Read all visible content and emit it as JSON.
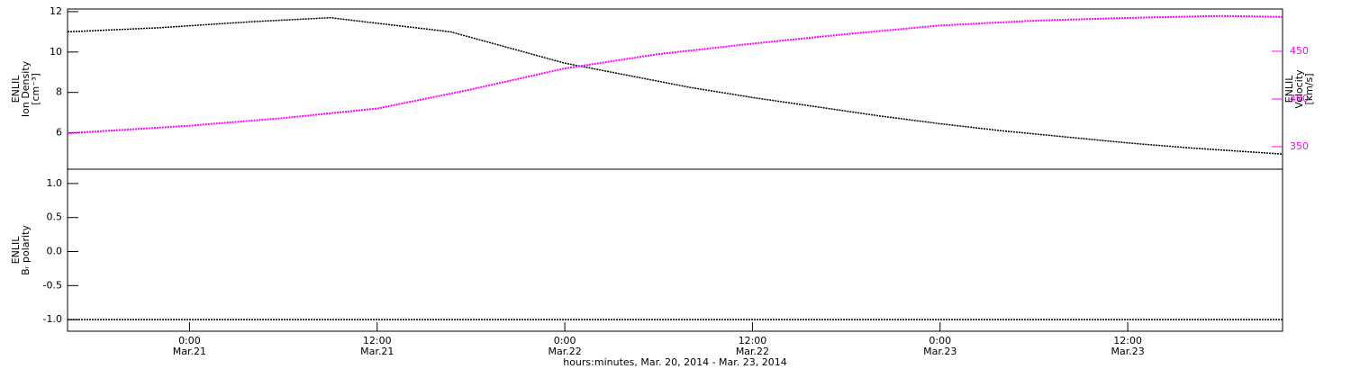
{
  "chart_data": [
    {
      "type": "line",
      "xlim": [
        16.2,
        93.9
      ],
      "ylim": [
        4.2,
        12.13
      ],
      "yticks": [
        6,
        8,
        10,
        12
      ],
      "y2lim": [
        326.4,
        494.3
      ],
      "y2ticks": [
        350,
        400,
        450
      ],
      "ylabel": [
        "ENLIL",
        "Ion Density",
        "[cm⁻³]"
      ],
      "y2label": [
        "ENLIL",
        "Velocity",
        "[km/s]"
      ],
      "series": [
        {
          "name": "Ion Density",
          "color": "#000000",
          "x": [
            16.2,
            22,
            28,
            33,
            40.7,
            44,
            48,
            52,
            56,
            60,
            64,
            68,
            72,
            76,
            80,
            84,
            88,
            93.9
          ],
          "values": [
            11.0,
            11.2,
            11.5,
            11.7,
            11.0,
            10.3,
            9.45,
            8.85,
            8.25,
            7.75,
            7.3,
            6.85,
            6.45,
            6.1,
            5.8,
            5.5,
            5.25,
            4.95
          ]
        },
        {
          "name": "Velocity",
          "color": "#ff00ff",
          "axis": "y2",
          "x": [
            16.2,
            24,
            30,
            36,
            42,
            48,
            54,
            60,
            66,
            72,
            78,
            84,
            90,
            93.9
          ],
          "values": [
            364,
            372,
            380,
            390,
            410,
            432,
            447,
            458,
            468,
            477,
            482,
            485,
            487,
            486
          ]
        }
      ]
    },
    {
      "type": "line",
      "xlim": [
        16.2,
        93.9
      ],
      "xticks": [
        {
          "value": 24,
          "label": "0:00"
        },
        {
          "value": 36,
          "label": "12:00"
        },
        {
          "value": 48,
          "label": "0:00"
        },
        {
          "value": 60,
          "label": "12:00"
        },
        {
          "value": 72,
          "label": "0:00"
        },
        {
          "value": 84,
          "label": "12:00"
        }
      ],
      "xtick_dates": [
        "Mar.21",
        "Mar.21",
        "Mar.22",
        "Mar.22",
        "Mar.23",
        "Mar.23"
      ],
      "xlabel": "hours:minutes, Mar. 20, 2014 - Mar. 23, 2014",
      "ylim": [
        -1.17,
        1.21
      ],
      "yticks": [
        {
          "value": 1,
          "label": "1.0"
        },
        {
          "value": 0.5,
          "label": "0.5"
        },
        {
          "value": 0,
          "label": "0.0"
        },
        {
          "value": -0.5,
          "label": "-0.5"
        },
        {
          "value": -1,
          "label": "-1.0"
        }
      ],
      "ylabel": [
        "ENLIL",
        "Bᵣ polarity"
      ],
      "series": [
        {
          "name": "Br polarity",
          "color": "#000000",
          "x": [
            16.2,
            93.9
          ],
          "values": [
            -1,
            -1
          ]
        }
      ]
    }
  ]
}
